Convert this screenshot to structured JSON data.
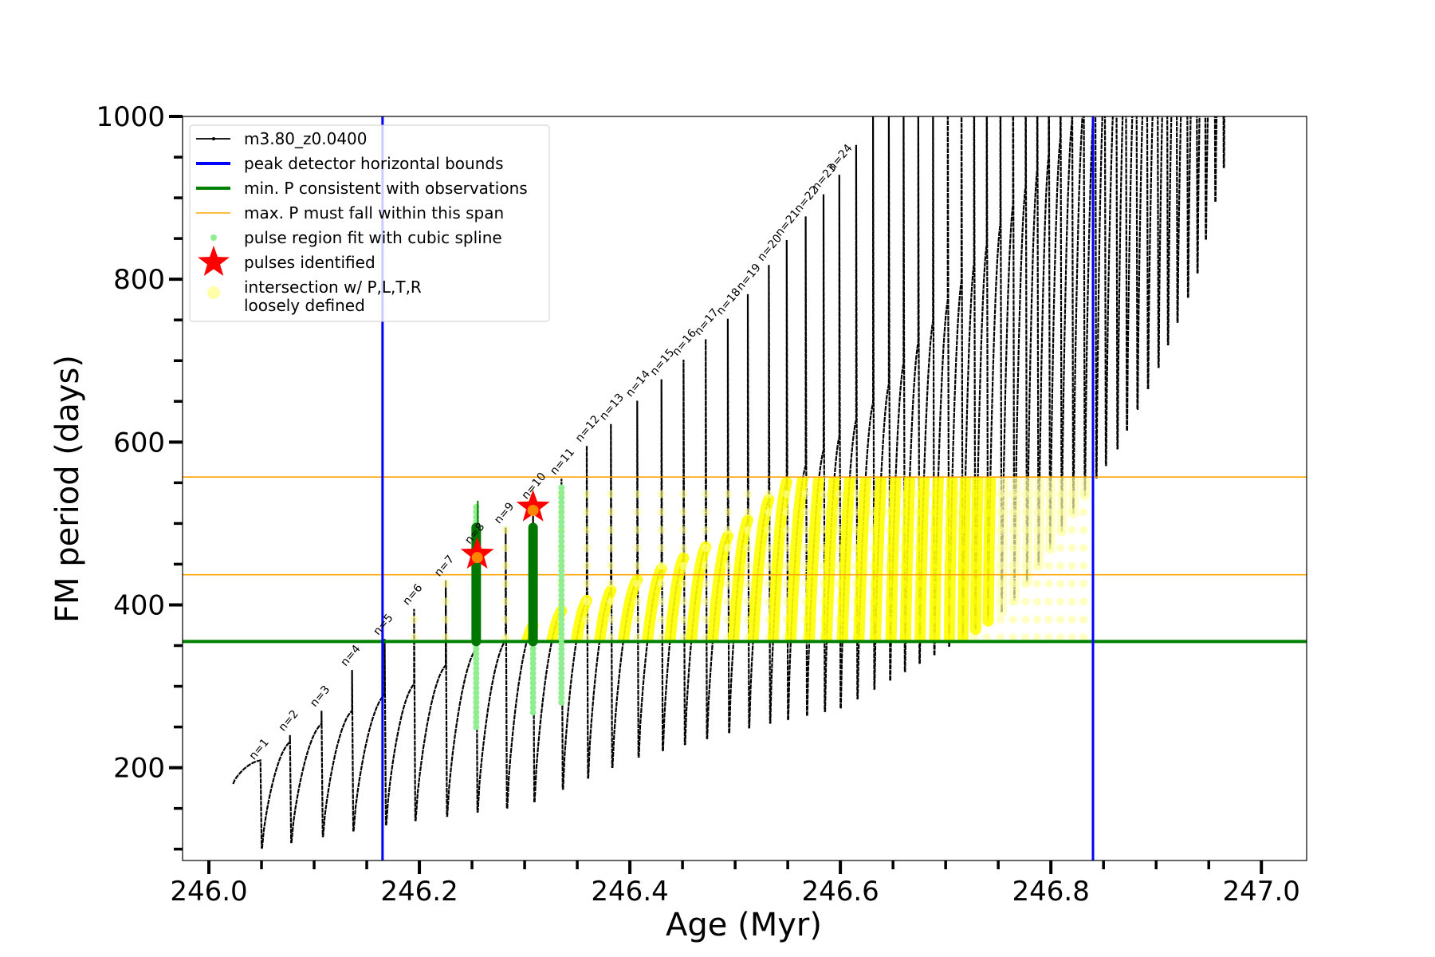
{
  "chart_data": {
    "type": "line",
    "xlabel": "Age (Myr)",
    "ylabel": "FM period (days)",
    "xlim": [
      245.975,
      247.043
    ],
    "ylim": [
      86,
      1000
    ],
    "x_ticks": [
      246.0,
      246.2,
      246.4,
      246.6,
      246.8,
      247.0
    ],
    "x_tick_labels": [
      "246.0",
      "246.2",
      "246.4",
      "246.6",
      "246.8",
      "247.0"
    ],
    "y_ticks": [
      200,
      400,
      600,
      800,
      1000
    ],
    "y_tick_labels": [
      "200",
      "400",
      "600",
      "800",
      "1000"
    ],
    "grid": false,
    "legend_placement": "top-left",
    "legend": [
      {
        "label": "m3.80_z0.0400",
        "kind": "line-dot",
        "color": "#000000"
      },
      {
        "label": "peak detector horizontal bounds",
        "kind": "line",
        "color": "#0000ff"
      },
      {
        "label": "min. P consistent with observations",
        "kind": "line",
        "color": "#008000"
      },
      {
        "label": "max. P must fall within this span",
        "kind": "thin-line",
        "color": "#ffa500"
      },
      {
        "label": "pulse region fit with cubic spline",
        "kind": "dot",
        "color": "#90ee90"
      },
      {
        "label": "pulses identified",
        "kind": "star",
        "color": "#ff0000"
      },
      {
        "label": "intersection w/ P,L,T,R",
        "label2": "loosely defined",
        "kind": "circle",
        "color": "#ffffaa"
      }
    ],
    "series_track": {
      "name": "m3.80_z0.0400",
      "start_age": 246.023,
      "start_period": 180,
      "end_age": 246.968,
      "pulse_ages": [
        246.049,
        246.077,
        246.107,
        246.136,
        246.167,
        246.195,
        246.225,
        246.254,
        246.282,
        246.308,
        246.335,
        246.359,
        246.382,
        246.407,
        246.43,
        246.451,
        246.472,
        246.493,
        246.512,
        246.532,
        246.549,
        246.567,
        246.584,
        246.599,
        246.615,
        246.631,
        246.646,
        246.66,
        246.674,
        246.688,
        246.702,
        246.715,
        246.727,
        246.739,
        246.752,
        246.764,
        246.776,
        246.787,
        246.798,
        246.809,
        246.82,
        246.831,
        246.842,
        246.851,
        246.862,
        246.871,
        246.881,
        246.891,
        246.901,
        246.91,
        246.919,
        246.929,
        246.938,
        246.946,
        246.955,
        246.963
      ],
      "hump_top_envelope": [
        [
          246.02,
          180
        ],
        [
          246.05,
          210
        ],
        [
          246.1,
          250
        ],
        [
          246.136,
          270
        ],
        [
          246.167,
          290
        ],
        [
          246.2,
          305
        ],
        [
          246.23,
          330
        ],
        [
          246.26,
          350
        ],
        [
          246.28,
          355
        ],
        [
          246.33,
          390
        ],
        [
          246.42,
          438
        ],
        [
          246.5,
          489
        ],
        [
          246.55,
          552
        ],
        [
          246.6,
          608
        ],
        [
          246.64,
          660
        ],
        [
          246.68,
          734
        ],
        [
          246.73,
          825
        ],
        [
          246.77,
          904
        ],
        [
          246.815,
          984
        ],
        [
          246.85,
          1050
        ],
        [
          247.0,
          1300
        ]
      ],
      "spike_top_envelope": [
        [
          246.049,
          205
        ],
        [
          246.077,
          240
        ],
        [
          246.107,
          270
        ],
        [
          246.136,
          320
        ],
        [
          246.167,
          358
        ],
        [
          246.195,
          395
        ],
        [
          246.225,
          430
        ],
        [
          246.254,
          470
        ],
        [
          246.282,
          495
        ],
        [
          246.308,
          525
        ],
        [
          246.335,
          555
        ],
        [
          246.36,
          597
        ],
        [
          246.45,
          700
        ],
        [
          246.5,
          760
        ],
        [
          246.55,
          850
        ],
        [
          246.6,
          930
        ],
        [
          246.63,
          1000
        ],
        [
          247.0,
          1400
        ]
      ],
      "minimum_envelope": [
        [
          246.03,
          96
        ],
        [
          246.17,
          130
        ],
        [
          246.3,
          153
        ],
        [
          246.4,
          210
        ],
        [
          246.5,
          245
        ],
        [
          246.6,
          273
        ],
        [
          246.7,
          347
        ],
        [
          246.76,
          398
        ],
        [
          246.8,
          472
        ],
        [
          246.84,
          552
        ],
        [
          246.86,
          586
        ],
        [
          246.9,
          688
        ],
        [
          246.937,
          802
        ],
        [
          246.97,
          973
        ]
      ]
    },
    "peak_detector_bounds": [
      246.165,
      246.84
    ],
    "min_period_line": 355,
    "max_period_span": [
      437,
      557
    ],
    "spline_fit_regions": [
      {
        "age": 246.254,
        "p_low": 250,
        "p_high": 525
      },
      {
        "age": 246.308,
        "p_low": 268,
        "p_high": 500
      },
      {
        "age": 246.335,
        "p_low": 280,
        "p_high": 545
      }
    ],
    "identified_region_dark": [
      {
        "age": 246.254,
        "p_low": 355,
        "p_high": 495
      },
      {
        "age": 246.308,
        "p_low": 355,
        "p_high": 495
      }
    ],
    "pulses_identified": [
      {
        "age": 246.255,
        "period": 462
      },
      {
        "age": 246.308,
        "period": 520
      }
    ],
    "pulse_labels": [
      "n=1",
      "n=2",
      "n=3",
      "n=4",
      "n=5",
      "n=6",
      "n=7",
      "n=8",
      "n=9",
      "n=10",
      "n=11",
      "n=12",
      "n=13",
      "n=14",
      "n=15",
      "n=16",
      "n=17",
      "n=18",
      "n=19",
      "n=20",
      "n=21",
      "n=22",
      "n=23",
      "n=24"
    ]
  }
}
